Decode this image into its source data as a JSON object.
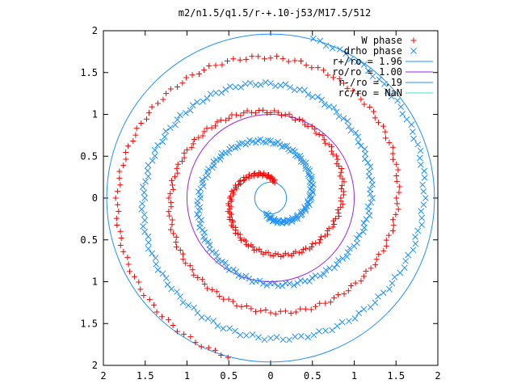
{
  "chart_data": {
    "type": "scatter",
    "title": "m2/n1.5/q1.5/r-+.10-j53/M17.5/512",
    "xlabel": "",
    "ylabel": "",
    "xlim": [
      -2,
      2
    ],
    "ylim": [
      -2,
      2
    ],
    "x_ticks": [
      -2,
      -1.5,
      -1,
      -0.5,
      0,
      0.5,
      1,
      1.5,
      2
    ],
    "y_ticks": [
      -2,
      -1.5,
      -1,
      -0.5,
      0,
      0.5,
      1,
      1.5,
      2
    ],
    "x_tick_labels": [
      "2",
      "1.5",
      "1",
      "0.5",
      "0",
      "0.5",
      "1",
      "1.5",
      "2"
    ],
    "y_tick_labels": [
      "2",
      "1.5",
      "1",
      "0.5",
      "0",
      "0.5",
      "1",
      "1.5",
      "2"
    ],
    "grid": false,
    "legend_position": "top-right",
    "series": [
      {
        "name": "W phase",
        "marker": "plus",
        "color": "#ff0000",
        "spiral": {
          "r_start": 0.19,
          "r_end": 1.96,
          "theta_start_deg": 75,
          "theta_span_deg": 900
        }
      },
      {
        "name": "drho phase",
        "marker": "x",
        "color": "#1e90ff",
        "spiral": {
          "r_start": 0.19,
          "r_end": 1.96,
          "theta_start_deg": 255,
          "theta_span_deg": 900
        }
      },
      {
        "name": "r+/ro = 1.96",
        "type": "circle",
        "radius": 1.96,
        "color": "#1e90ff"
      },
      {
        "name": "ro/ro = 1.00",
        "type": "circle",
        "radius": 1.0,
        "color": "#a020f0"
      },
      {
        "name": "r-/ro = .19",
        "type": "circle",
        "radius": 0.19,
        "color": "#1e90ff"
      },
      {
        "name": "rc/ro = NaN",
        "type": "circle",
        "radius": null,
        "color": "#40e0d0"
      }
    ]
  }
}
